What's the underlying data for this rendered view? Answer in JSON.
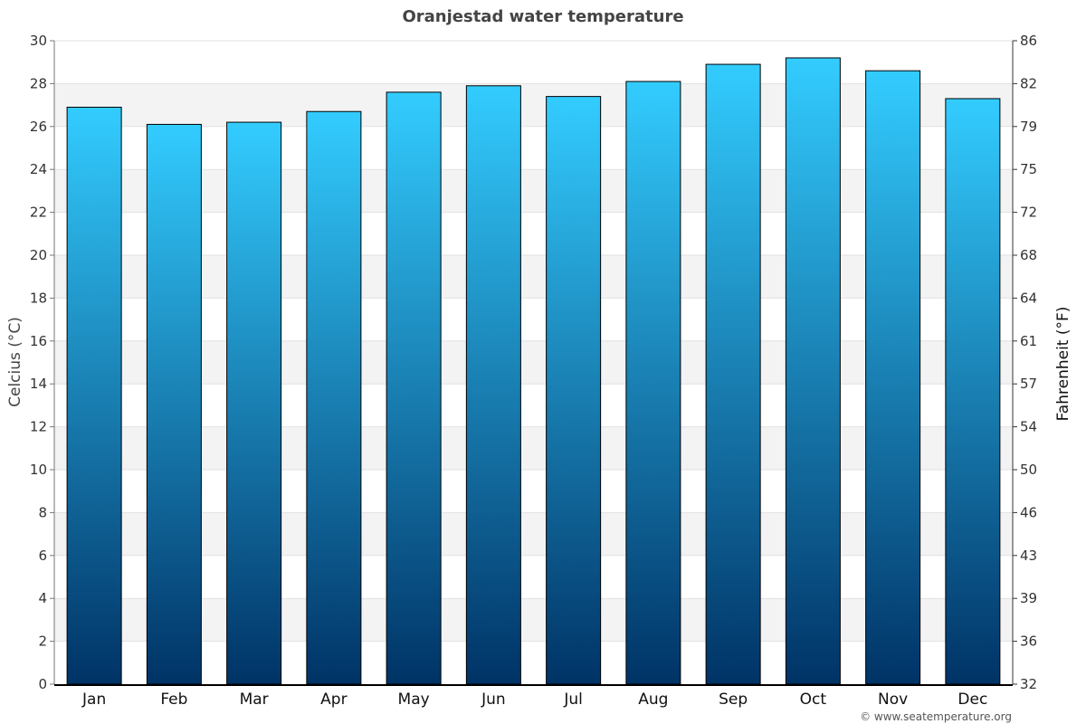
{
  "chart_data": {
    "type": "bar",
    "title": "Oranjestad water temperature",
    "categories": [
      "Jan",
      "Feb",
      "Mar",
      "Apr",
      "May",
      "Jun",
      "Jul",
      "Aug",
      "Sep",
      "Oct",
      "Nov",
      "Dec"
    ],
    "values": [
      26.9,
      26.1,
      26.2,
      26.7,
      27.6,
      27.9,
      27.4,
      28.1,
      28.9,
      29.2,
      28.6,
      27.3
    ],
    "ylabel": "Celcius (°C)",
    "ylabel_right": "Fahrenheit (°F)",
    "ylim": [
      0,
      30
    ],
    "yticks": [
      "0",
      "2",
      "4",
      "6",
      "8",
      "10",
      "12",
      "14",
      "16",
      "18",
      "20",
      "22",
      "24",
      "26",
      "28",
      "30"
    ],
    "yticks_right": [
      "32",
      "36",
      "39",
      "43",
      "46",
      "50",
      "54",
      "57",
      "61",
      "64",
      "68",
      "72",
      "75",
      "79",
      "82",
      "86"
    ],
    "grid": true,
    "colors": {
      "bar_top": "#33ccff",
      "bar_bottom": "#003366",
      "band": "#f3f3f4"
    }
  },
  "credit": "© www.seatemperature.org"
}
